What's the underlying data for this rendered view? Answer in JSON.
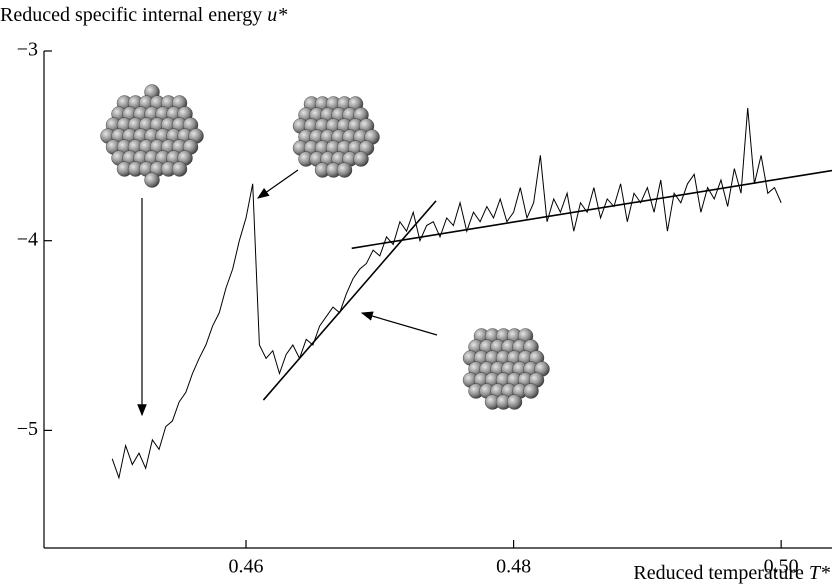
{
  "chart_data": {
    "type": "line",
    "ylabel": "Reduced specific internal energy",
    "ylabel_symbol": "u*",
    "xlabel": "Reduced temperature",
    "xlabel_symbol": "T*",
    "xlim": [
      0.4449,
      0.5038
    ],
    "ylim": [
      -5.62,
      -3
    ],
    "xticks": [
      0.46,
      0.48,
      {
        "value": 0.5,
        "label": "0.50"
      }
    ],
    "yticks": [
      {
        "value": -3,
        "label": "−3"
      },
      {
        "value": -4,
        "label": "−4"
      },
      {
        "value": -5,
        "label": "−5"
      }
    ],
    "series": [
      {
        "color": "#000000",
        "x": [
          0.45,
          0.4505,
          0.451,
          0.4515,
          0.452,
          0.4525,
          0.453,
          0.4535,
          0.454,
          0.4545,
          0.455,
          0.4555,
          0.456,
          0.4565,
          0.457,
          0.4575,
          0.458,
          0.4585,
          0.459,
          0.4595,
          0.46,
          0.4605,
          0.461,
          0.4615,
          0.462,
          0.4625,
          0.463,
          0.4635,
          0.464,
          0.4645,
          0.465,
          0.4655,
          0.466,
          0.4665,
          0.467,
          0.4675,
          0.468,
          0.4685,
          0.469,
          0.4695,
          0.47,
          0.4705,
          0.471,
          0.4715,
          0.472,
          0.4725,
          0.473,
          0.4735,
          0.474,
          0.4745,
          0.475,
          0.4755,
          0.476,
          0.4765,
          0.477,
          0.4775,
          0.478,
          0.4785,
          0.479,
          0.4795,
          0.48,
          0.4805,
          0.481,
          0.4815,
          0.482,
          0.4825,
          0.483,
          0.4835,
          0.484,
          0.4845,
          0.485,
          0.4855,
          0.486,
          0.4865,
          0.487,
          0.4875,
          0.488,
          0.4885,
          0.489,
          0.4895,
          0.49,
          0.4905,
          0.491,
          0.4915,
          0.492,
          0.4925,
          0.493,
          0.4935,
          0.494,
          0.4945,
          0.495,
          0.4955,
          0.496,
          0.4965,
          0.497,
          0.4975,
          0.498,
          0.4985,
          0.499,
          0.4995,
          0.5
        ],
        "values": [
          -5.15,
          -5.25,
          -5.08,
          -5.18,
          -5.12,
          -5.2,
          -5.05,
          -5.1,
          -4.98,
          -4.95,
          -4.85,
          -4.8,
          -4.7,
          -4.62,
          -4.55,
          -4.45,
          -4.38,
          -4.25,
          -4.15,
          -4.0,
          -3.88,
          -3.7,
          -4.55,
          -4.62,
          -4.58,
          -4.7,
          -4.6,
          -4.55,
          -4.62,
          -4.52,
          -4.55,
          -4.45,
          -4.4,
          -4.35,
          -4.38,
          -4.28,
          -4.2,
          -4.15,
          -4.12,
          -4.05,
          -4.08,
          -3.98,
          -4.02,
          -3.9,
          -3.95,
          -3.85,
          -4.0,
          -3.92,
          -3.9,
          -3.98,
          -3.88,
          -3.92,
          -3.8,
          -3.95,
          -3.85,
          -3.9,
          -3.82,
          -3.88,
          -3.78,
          -3.9,
          -3.85,
          -3.72,
          -3.88,
          -3.8,
          -3.55,
          -3.9,
          -3.78,
          -3.85,
          -3.75,
          -3.95,
          -3.8,
          -3.85,
          -3.72,
          -3.88,
          -3.78,
          -3.82,
          -3.7,
          -3.9,
          -3.75,
          -3.8,
          -3.72,
          -3.85,
          -3.68,
          -3.95,
          -3.75,
          -3.8,
          -3.7,
          -3.65,
          -3.85,
          -3.72,
          -3.78,
          -3.68,
          -3.82,
          -3.62,
          -3.75,
          -3.3,
          -3.7,
          -3.55,
          -3.75,
          -3.72,
          -3.8
        ]
      },
      {
        "color": "#000000",
        "x": [
          0.4613,
          0.4742
        ],
        "values": [
          -4.84,
          -3.79
        ]
      },
      {
        "color": "#000000",
        "x": [
          0.4679,
          0.5038
        ],
        "values": [
          -4.04,
          -3.63
        ]
      }
    ]
  }
}
